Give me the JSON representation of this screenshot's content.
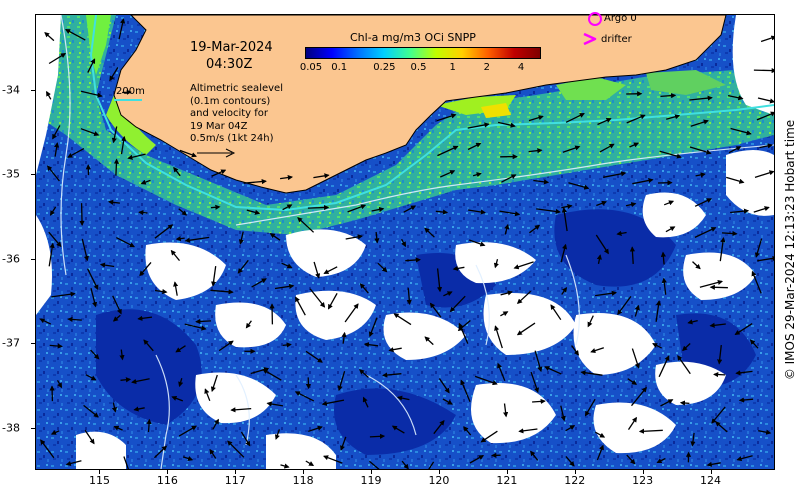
{
  "header": {
    "date": "19-Mar-2024",
    "time": "04:30Z"
  },
  "colorbar": {
    "title": "Chl-a mg/m3 OCi SNPP",
    "labels": [
      "0.05",
      "0.1",
      "0.25",
      "0.5",
      "1",
      "2",
      "4"
    ],
    "label_values": [
      0.05,
      0.1,
      0.25,
      0.5,
      1,
      2,
      4
    ],
    "range": [
      0.05,
      6
    ],
    "scale": "log",
    "colors": [
      "#00007f",
      "#0000ff",
      "#0070ff",
      "#00d0ff",
      "#40ff90",
      "#c0ff00",
      "#ffd000",
      "#ff6000",
      "#c00000",
      "#7f0000"
    ]
  },
  "legend": {
    "bathymetry_label": "200m",
    "bathymetry_color": "#40e0e0",
    "lines": [
      "Altimetric sealevel",
      "(0.1m contours)",
      "and velocity for",
      "19 Mar 04Z",
      "0.5m/s (1kt 24h)"
    ],
    "argo_label": "Argo 0",
    "argo_color": "#ff00ff",
    "drifter_label": "drifter",
    "drifter_color": "#ff00ff"
  },
  "axes": {
    "x_ticks": [
      "115",
      "116",
      "117",
      "118",
      "119",
      "120",
      "121",
      "122",
      "123",
      "124"
    ],
    "x_values": [
      115,
      116,
      117,
      118,
      119,
      120,
      121,
      122,
      123,
      124
    ],
    "y_ticks": [
      "-34",
      "-35",
      "-36",
      "-37",
      "-38"
    ],
    "y_values": [
      -34,
      -35,
      -36,
      -37,
      -38
    ],
    "lon_range": [
      114.05,
      124.95
    ],
    "lat_range": [
      -38.5,
      -33.1
    ]
  },
  "colors": {
    "land": "#fbc690",
    "coast": "#000000",
    "cloud": "#ffffff",
    "ocean_deep": "#0a2fb8",
    "ocean_mid": "#1e7adc",
    "ocean_shelf": "#3cc88c",
    "contour": "#e0f0ff",
    "arrow": "#000000"
  },
  "copyright": "© IMOS 29-Mar-2024 12:13:23 Hobart time"
}
